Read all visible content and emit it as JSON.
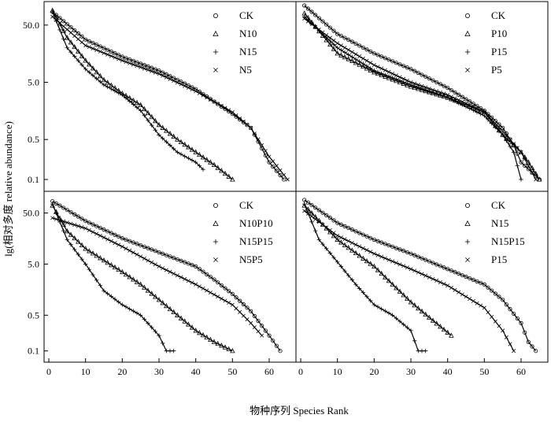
{
  "figure": {
    "ylabel": "lg(相对多度 relative abundance)",
    "xlabel": "物种序列 Species Rank"
  },
  "chart_data": [
    {
      "type": "line",
      "panel": "top-left",
      "x_ticks": [],
      "y_ticks": [
        "50.0",
        "5.0",
        "0.5",
        "0.1"
      ],
      "y_tick_values": [
        50,
        5,
        0.5,
        0.1
      ],
      "xlim": [
        0,
        66
      ],
      "ylim": [
        0.08,
        100
      ],
      "y_scale": "log",
      "legend_position": "top-right",
      "series": [
        {
          "name": "CK",
          "marker": "circle",
          "ranks": [
            1,
            10,
            20,
            30,
            40,
            50,
            55,
            60,
            64
          ],
          "values": [
            85,
            28,
            14,
            8,
            3.8,
            1.4,
            0.8,
            0.2,
            0.1
          ]
        },
        {
          "name": "N10",
          "marker": "triangle",
          "ranks": [
            1,
            5,
            10,
            15,
            20,
            25,
            30,
            35,
            40,
            45,
            50
          ],
          "values": [
            90,
            30,
            12,
            5.5,
            3.2,
            2.0,
            0.9,
            0.5,
            0.3,
            0.18,
            0.1
          ]
        },
        {
          "name": "N15",
          "marker": "plus",
          "ranks": [
            1,
            5,
            10,
            15,
            20,
            25,
            30,
            35,
            40,
            42
          ],
          "values": [
            85,
            20,
            8.5,
            4.5,
            3,
            1.6,
            0.6,
            0.3,
            0.2,
            0.15
          ]
        },
        {
          "name": "N5",
          "marker": "x",
          "ranks": [
            1,
            10,
            20,
            30,
            40,
            50,
            55,
            60,
            65
          ],
          "values": [
            70,
            22,
            12,
            7,
            3.5,
            1.5,
            0.8,
            0.25,
            0.1
          ]
        }
      ]
    },
    {
      "type": "line",
      "panel": "top-right",
      "x_ticks": [],
      "y_ticks": [],
      "y_tick_values": [],
      "xlim": [
        0,
        66
      ],
      "ylim": [
        0.08,
        100
      ],
      "y_scale": "log",
      "legend_position": "top-right",
      "series": [
        {
          "name": "CK",
          "marker": "circle",
          "ranks": [
            1,
            10,
            20,
            30,
            40,
            50,
            55,
            58,
            60,
            65
          ],
          "values": [
            110,
            35,
            16,
            8.5,
            4.0,
            1.6,
            0.8,
            0.4,
            0.2,
            0.1
          ]
        },
        {
          "name": "P10",
          "marker": "triangle",
          "ranks": [
            1,
            10,
            20,
            30,
            40,
            50,
            55,
            60,
            62,
            65
          ],
          "values": [
            80,
            16,
            7.5,
            4.2,
            2.7,
            1.5,
            0.6,
            0.3,
            0.2,
            0.1
          ]
        },
        {
          "name": "P15",
          "marker": "plus",
          "ranks": [
            1,
            10,
            20,
            30,
            40,
            50,
            55,
            58,
            60
          ],
          "values": [
            70,
            20,
            8,
            4.5,
            2.7,
            1.3,
            0.6,
            0.3,
            0.1
          ]
        },
        {
          "name": "P5",
          "marker": "x",
          "ranks": [
            1,
            10,
            20,
            30,
            40,
            50,
            55,
            60,
            64
          ],
          "values": [
            65,
            24,
            10,
            5,
            3,
            1.5,
            0.7,
            0.3,
            0.1
          ]
        }
      ]
    },
    {
      "type": "line",
      "panel": "bottom-left",
      "x_ticks": [
        "0",
        "10",
        "20",
        "30",
        "40",
        "50",
        "60"
      ],
      "x_tick_values": [
        0,
        10,
        20,
        30,
        40,
        50,
        60
      ],
      "y_ticks": [
        "50.0",
        "5.0",
        "0.5",
        "0.1"
      ],
      "y_tick_values": [
        50,
        5,
        0.5,
        0.1
      ],
      "xlim": [
        0,
        66
      ],
      "ylim": [
        0.08,
        100
      ],
      "y_scale": "log",
      "legend_position": "top-right",
      "series": [
        {
          "name": "CK",
          "marker": "circle",
          "ranks": [
            1,
            10,
            20,
            30,
            40,
            45,
            50,
            55,
            60,
            63
          ],
          "values": [
            85,
            35,
            16,
            8.5,
            4.5,
            2.5,
            1.3,
            0.6,
            0.2,
            0.1
          ]
        },
        {
          "name": "N10P10",
          "marker": "triangle",
          "ranks": [
            1,
            5,
            10,
            20,
            25,
            30,
            35,
            40,
            45,
            50
          ],
          "values": [
            70,
            22,
            10,
            3.5,
            2,
            1,
            0.5,
            0.25,
            0.15,
            0.1
          ]
        },
        {
          "name": "N15P15",
          "marker": "plus",
          "ranks": [
            1,
            5,
            10,
            15,
            20,
            25,
            30,
            32,
            34
          ],
          "values": [
            75,
            15,
            5,
            1.5,
            0.8,
            0.5,
            0.2,
            0.1,
            0.1
          ]
        },
        {
          "name": "N5P5",
          "marker": "x",
          "ranks": [
            1,
            10,
            20,
            30,
            40,
            50,
            55,
            58
          ],
          "values": [
            40,
            25,
            11,
            4.5,
            2,
            0.8,
            0.35,
            0.2
          ]
        }
      ]
    },
    {
      "type": "line",
      "panel": "bottom-right",
      "x_ticks": [
        "0",
        "10",
        "20",
        "30",
        "40",
        "50",
        "60"
      ],
      "x_tick_values": [
        0,
        10,
        20,
        30,
        40,
        50,
        60
      ],
      "y_ticks": [],
      "y_tick_values": [],
      "xlim": [
        0,
        66
      ],
      "ylim": [
        0.08,
        100
      ],
      "y_scale": "log",
      "legend_position": "top-right",
      "series": [
        {
          "name": "CK",
          "marker": "circle",
          "ranks": [
            1,
            10,
            20,
            30,
            40,
            50,
            55,
            60,
            62,
            64
          ],
          "values": [
            90,
            32,
            15,
            8,
            4,
            2,
            1,
            0.35,
            0.15,
            0.1
          ]
        },
        {
          "name": "N15",
          "marker": "triangle",
          "ranks": [
            1,
            10,
            20,
            25,
            30,
            35,
            38,
            41
          ],
          "values": [
            70,
            15,
            4.5,
            2,
            0.9,
            0.45,
            0.3,
            0.2
          ]
        },
        {
          "name": "N15P15",
          "marker": "plus",
          "ranks": [
            1,
            5,
            10,
            15,
            20,
            25,
            30,
            32,
            34
          ],
          "values": [
            75,
            15,
            5.5,
            2,
            0.8,
            0.5,
            0.25,
            0.1,
            0.1
          ]
        },
        {
          "name": "P15",
          "marker": "x",
          "ranks": [
            1,
            10,
            20,
            30,
            40,
            50,
            55,
            58
          ],
          "values": [
            55,
            18,
            8,
            4,
            1.9,
            0.7,
            0.25,
            0.1
          ]
        }
      ]
    }
  ]
}
